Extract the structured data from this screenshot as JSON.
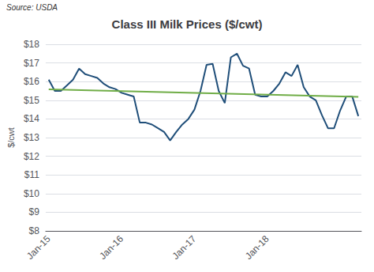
{
  "chart_data": {
    "type": "line",
    "title": "Class III Milk Prices ($/cwt)",
    "annotations": [
      "Source: USDA"
    ],
    "ylabel": "$/cwt",
    "categories": [
      "Jan-15",
      null,
      null,
      null,
      null,
      null,
      null,
      null,
      null,
      null,
      null,
      null,
      "Jan-16",
      null,
      null,
      null,
      null,
      null,
      null,
      null,
      null,
      null,
      null,
      null,
      "Jan-17",
      null,
      null,
      null,
      null,
      null,
      null,
      null,
      null,
      null,
      null,
      null,
      "Jan-18",
      null,
      null,
      null,
      null,
      null,
      null,
      null,
      null,
      null,
      null,
      null,
      null,
      null,
      null,
      null
    ],
    "series": [
      {
        "color": "#1F4E79",
        "values": [
          16.1,
          15.5,
          15.5,
          15.8,
          16.1,
          16.7,
          16.4,
          16.3,
          16.2,
          15.9,
          15.7,
          15.6,
          15.4,
          15.3,
          15.2,
          13.8,
          13.8,
          13.7,
          13.5,
          13.3,
          12.85,
          13.3,
          13.7,
          14.0,
          14.5,
          15.5,
          16.9,
          16.95,
          15.5,
          14.85,
          17.3,
          17.5,
          16.85,
          16.7,
          15.3,
          15.2,
          15.2,
          15.5,
          15.9,
          16.5,
          16.3,
          16.9,
          15.7,
          15.2,
          15.0,
          14.2,
          13.5,
          13.5,
          14.45,
          15.2,
          15.2,
          14.15
        ]
      },
      {
        "color": "#70AD47",
        "values": [
          15.58,
          null,
          null,
          null,
          null,
          null,
          null,
          null,
          null,
          null,
          null,
          null,
          null,
          null,
          null,
          null,
          null,
          null,
          null,
          null,
          null,
          null,
          null,
          null,
          null,
          null,
          null,
          null,
          null,
          null,
          null,
          null,
          null,
          null,
          null,
          null,
          null,
          null,
          null,
          null,
          null,
          null,
          null,
          null,
          null,
          null,
          null,
          null,
          null,
          null,
          null,
          15.18
        ]
      }
    ],
    "ylim": [
      8,
      18
    ],
    "yticks": [
      {
        "value": 8,
        "label": "$8"
      },
      {
        "value": 9,
        "label": "$9"
      },
      {
        "value": 10,
        "label": "$10"
      },
      {
        "value": 11,
        "label": "$11"
      },
      {
        "value": 12,
        "label": "$12"
      },
      {
        "value": 13,
        "label": "$13"
      },
      {
        "value": 14,
        "label": "$14"
      },
      {
        "value": 15,
        "label": "$15"
      },
      {
        "value": 16,
        "label": "$16"
      },
      {
        "value": 17,
        "label": "$17"
      },
      {
        "value": 18,
        "label": "$18"
      }
    ],
    "grid": true
  }
}
